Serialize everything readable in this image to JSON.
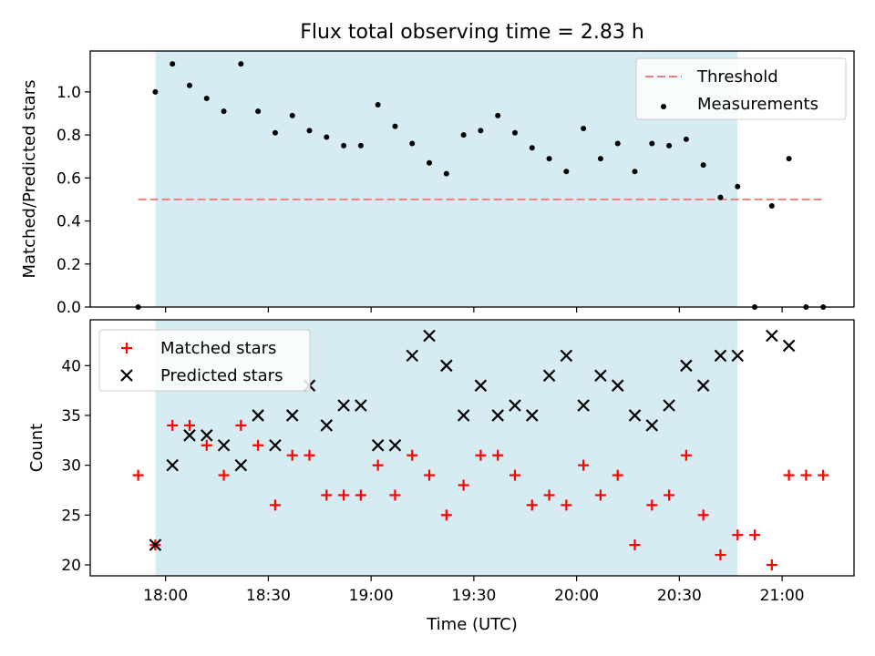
{
  "title": "Flux total observing time = 2.83 h",
  "xlabel": "Time (UTC)",
  "x_ticks": [
    "18:00",
    "18:30",
    "19:00",
    "19:30",
    "20:00",
    "20:30",
    "21:00"
  ],
  "observing_window": {
    "start": "17:57",
    "end": "20:47",
    "color": "#add8e6"
  },
  "chart_data": [
    {
      "type": "scatter",
      "ylabel": "Matched/Predicted stars",
      "ylim": [
        0,
        1.19
      ],
      "yticks": [
        "0.0",
        "0.2",
        "0.4",
        "0.6",
        "0.8",
        "1.0"
      ],
      "threshold": {
        "name": "Threshold",
        "value": 0.5,
        "x_range": [
          "17:52",
          "21:12"
        ],
        "color": "#f08080"
      },
      "series": [
        {
          "name": "Measurements",
          "color": "#000000",
          "points": [
            [
              "17:52",
              0.0
            ],
            [
              "17:57",
              1.0
            ],
            [
              "18:02",
              1.13
            ],
            [
              "18:07",
              1.03
            ],
            [
              "18:12",
              0.97
            ],
            [
              "18:17",
              0.91
            ],
            [
              "18:22",
              1.13
            ],
            [
              "18:27",
              0.91
            ],
            [
              "18:32",
              0.81
            ],
            [
              "18:37",
              0.89
            ],
            [
              "18:42",
              0.82
            ],
            [
              "18:47",
              0.79
            ],
            [
              "18:52",
              0.75
            ],
            [
              "18:57",
              0.75
            ],
            [
              "19:02",
              0.94
            ],
            [
              "19:07",
              0.84
            ],
            [
              "19:12",
              0.76
            ],
            [
              "19:17",
              0.67
            ],
            [
              "19:22",
              0.62
            ],
            [
              "19:27",
              0.8
            ],
            [
              "19:32",
              0.82
            ],
            [
              "19:37",
              0.89
            ],
            [
              "19:42",
              0.81
            ],
            [
              "19:47",
              0.74
            ],
            [
              "19:52",
              0.69
            ],
            [
              "19:57",
              0.63
            ],
            [
              "20:02",
              0.83
            ],
            [
              "20:07",
              0.69
            ],
            [
              "20:12",
              0.76
            ],
            [
              "20:17",
              0.63
            ],
            [
              "20:22",
              0.76
            ],
            [
              "20:27",
              0.75
            ],
            [
              "20:32",
              0.78
            ],
            [
              "20:37",
              0.66
            ],
            [
              "20:42",
              0.51
            ],
            [
              "20:47",
              0.56
            ],
            [
              "20:52",
              0.0
            ],
            [
              "20:57",
              0.47
            ],
            [
              "21:02",
              0.69
            ],
            [
              "21:07",
              0.0
            ],
            [
              "21:12",
              0.0
            ]
          ]
        }
      ],
      "legend": [
        "Threshold",
        "Measurements"
      ],
      "legend_position": "upper right"
    },
    {
      "type": "scatter",
      "ylabel": "Count",
      "ylim": [
        18.9,
        44.6
      ],
      "yticks": [
        "20",
        "25",
        "30",
        "35",
        "40"
      ],
      "series": [
        {
          "name": "Matched stars",
          "marker": "+",
          "color": "#ff0000",
          "points": [
            [
              "17:52",
              29
            ],
            [
              "17:57",
              22
            ],
            [
              "18:02",
              34
            ],
            [
              "18:07",
              34
            ],
            [
              "18:12",
              32
            ],
            [
              "18:17",
              29
            ],
            [
              "18:22",
              34
            ],
            [
              "18:27",
              32
            ],
            [
              "18:32",
              26
            ],
            [
              "18:37",
              31
            ],
            [
              "18:42",
              31
            ],
            [
              "18:47",
              27
            ],
            [
              "18:52",
              27
            ],
            [
              "18:57",
              27
            ],
            [
              "19:02",
              30
            ],
            [
              "19:07",
              27
            ],
            [
              "19:12",
              31
            ],
            [
              "19:17",
              29
            ],
            [
              "19:22",
              25
            ],
            [
              "19:27",
              28
            ],
            [
              "19:32",
              31
            ],
            [
              "19:37",
              31
            ],
            [
              "19:42",
              29
            ],
            [
              "19:47",
              26
            ],
            [
              "19:52",
              27
            ],
            [
              "19:57",
              26
            ],
            [
              "20:02",
              30
            ],
            [
              "20:07",
              27
            ],
            [
              "20:12",
              29
            ],
            [
              "20:17",
              22
            ],
            [
              "20:22",
              26
            ],
            [
              "20:27",
              27
            ],
            [
              "20:32",
              31
            ],
            [
              "20:37",
              25
            ],
            [
              "20:42",
              21
            ],
            [
              "20:47",
              23
            ],
            [
              "20:52",
              23
            ],
            [
              "20:57",
              20
            ],
            [
              "21:02",
              29
            ],
            [
              "21:07",
              29
            ],
            [
              "21:12",
              29
            ]
          ]
        },
        {
          "name": "Predicted stars",
          "marker": "x",
          "color": "#000000",
          "points": [
            [
              "17:57",
              22
            ],
            [
              "18:02",
              30
            ],
            [
              "18:07",
              33
            ],
            [
              "18:12",
              33
            ],
            [
              "18:17",
              32
            ],
            [
              "18:22",
              30
            ],
            [
              "18:27",
              35
            ],
            [
              "18:32",
              32
            ],
            [
              "18:37",
              35
            ],
            [
              "18:42",
              38
            ],
            [
              "18:47",
              34
            ],
            [
              "18:52",
              36
            ],
            [
              "18:57",
              36
            ],
            [
              "19:02",
              32
            ],
            [
              "19:07",
              32
            ],
            [
              "19:12",
              41
            ],
            [
              "19:17",
              43
            ],
            [
              "19:22",
              40
            ],
            [
              "19:27",
              35
            ],
            [
              "19:32",
              38
            ],
            [
              "19:37",
              35
            ],
            [
              "19:42",
              36
            ],
            [
              "19:47",
              35
            ],
            [
              "19:52",
              39
            ],
            [
              "19:57",
              41
            ],
            [
              "20:02",
              36
            ],
            [
              "20:07",
              39
            ],
            [
              "20:12",
              38
            ],
            [
              "20:17",
              35
            ],
            [
              "20:22",
              34
            ],
            [
              "20:27",
              36
            ],
            [
              "20:32",
              40
            ],
            [
              "20:37",
              38
            ],
            [
              "20:42",
              41
            ],
            [
              "20:47",
              41
            ],
            [
              "20:57",
              43
            ],
            [
              "21:02",
              42
            ]
          ]
        }
      ],
      "legend": [
        "Matched stars",
        "Predicted stars"
      ],
      "legend_position": "upper left"
    }
  ]
}
